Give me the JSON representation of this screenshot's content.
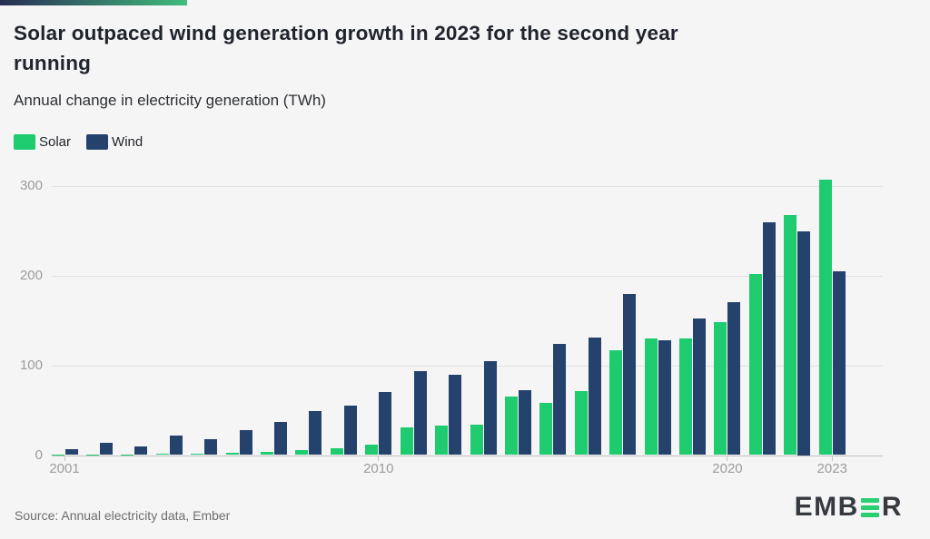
{
  "header": {
    "title": "Solar outpaced wind generation growth in 2023 for the second year\nrunning",
    "subtitle": "Annual change in electricity generation (TWh)",
    "accent_gradient": [
      "#282d55",
      "#41bc7c"
    ]
  },
  "chart_data": {
    "type": "bar",
    "title": "Solar outpaced wind generation growth in 2023 for the second year running",
    "subtitle": "Annual change in electricity generation (TWh)",
    "xlabel": "",
    "ylabel": "Annual change in electricity generation (TWh)",
    "categories": [
      2001,
      2002,
      2003,
      2004,
      2005,
      2006,
      2007,
      2008,
      2009,
      2010,
      2011,
      2012,
      2013,
      2014,
      2015,
      2016,
      2017,
      2018,
      2019,
      2020,
      2021,
      2022,
      2023
    ],
    "series": [
      {
        "name": "Solar",
        "color": "#1ecb6f",
        "values": [
          1,
          1,
          1,
          2,
          2,
          3,
          4,
          6,
          8,
          12,
          31,
          33,
          34,
          65,
          58,
          71,
          117,
          130,
          130,
          148,
          202,
          268,
          308
        ]
      },
      {
        "name": "Wind",
        "color": "#25426c",
        "values": [
          7,
          14,
          10,
          22,
          18,
          28,
          37,
          49,
          55,
          70,
          94,
          90,
          105,
          72,
          124,
          131,
          180,
          128,
          152,
          171,
          260,
          250,
          205
        ]
      }
    ],
    "ylim": [
      0,
      320
    ],
    "yticks": [
      0,
      100,
      200,
      300
    ],
    "xticks": [
      2001,
      2010,
      2020,
      2023
    ],
    "grid": "horizontal",
    "legend_position": "top-left"
  },
  "footer": {
    "source": "Source: Annual electricity data, Ember",
    "logo_prefix": "EMB",
    "logo_suffix": "R",
    "logo_text_color": "#363a40",
    "logo_accent_color": "#29d071"
  },
  "colors": {
    "background": "#f5f5f6",
    "axis_text": "#9c9c9c",
    "gridline": "#e1e1e2",
    "zero_line": "#c3c3c4"
  }
}
